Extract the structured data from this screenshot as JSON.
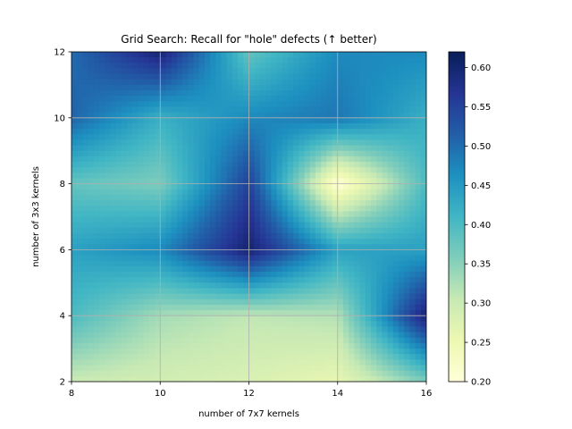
{
  "chart_data": {
    "type": "heatmap",
    "title": "Grid Search: Recall for \"hole\" defects (↑ better)",
    "xlabel": "number of 7x7 kernels",
    "ylabel": "number of 3x3 kernels",
    "x": [
      8,
      10,
      12,
      14,
      16
    ],
    "y": [
      2,
      4,
      6,
      8,
      10,
      12
    ],
    "z": [
      [
        0.3,
        0.29,
        0.28,
        0.26,
        0.36
      ],
      [
        0.4,
        0.33,
        0.31,
        0.32,
        0.6
      ],
      [
        0.44,
        0.47,
        0.6,
        0.44,
        0.44
      ],
      [
        0.38,
        0.36,
        0.55,
        0.2,
        0.4
      ],
      [
        0.51,
        0.42,
        0.47,
        0.49,
        0.42
      ],
      [
        0.5,
        0.6,
        0.38,
        0.47,
        0.47
      ]
    ],
    "xlim": [
      8,
      16
    ],
    "ylim": [
      2,
      12
    ],
    "x_ticks": [
      "8",
      "10",
      "12",
      "14",
      "16"
    ],
    "y_ticks": [
      "2",
      "4",
      "6",
      "8",
      "10",
      "12"
    ],
    "grid": true,
    "colorbar": {
      "range": [
        0.2,
        0.62
      ],
      "ticks": [
        "0.20",
        "0.25",
        "0.30",
        "0.35",
        "0.40",
        "0.45",
        "0.50",
        "0.55",
        "0.60"
      ],
      "colormap": [
        "#ffffd9",
        "#edf8b1",
        "#c7e9b4",
        "#7fcdbb",
        "#41b6c4",
        "#1d91c0",
        "#225ea8",
        "#253494",
        "#081d58"
      ]
    }
  }
}
